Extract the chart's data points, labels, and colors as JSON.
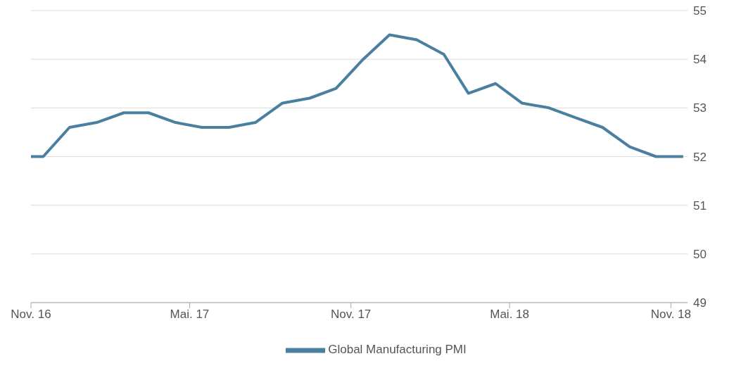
{
  "chart_data": {
    "type": "line",
    "x": [
      "2016-11-01",
      "2016-11-15",
      "2016-12-15",
      "2017-01-15",
      "2017-02-15",
      "2017-03-15",
      "2017-04-15",
      "2017-05-15",
      "2017-06-15",
      "2017-07-15",
      "2017-08-15",
      "2017-09-15",
      "2017-10-15",
      "2017-11-15",
      "2017-12-15",
      "2018-01-15",
      "2018-02-15",
      "2018-03-15",
      "2018-04-15",
      "2018-05-15",
      "2018-06-15",
      "2018-07-15",
      "2018-08-15",
      "2018-09-15",
      "2018-10-15",
      "2018-11-15"
    ],
    "series": [
      {
        "name": "Global Manufacturing PMI",
        "color": "#4a7fa0",
        "values": [
          52.0,
          52.0,
          52.6,
          52.7,
          52.9,
          52.9,
          52.7,
          52.6,
          52.6,
          52.7,
          53.1,
          53.2,
          53.4,
          54.0,
          54.5,
          54.4,
          54.1,
          53.3,
          53.5,
          53.1,
          53.0,
          52.8,
          52.6,
          52.2,
          52.0,
          52.0
        ]
      }
    ],
    "xlim": [
      "2016-11-01",
      "2018-11-20"
    ],
    "xticks": [
      {
        "value": "2016-11-01",
        "label": "Nov. 16"
      },
      {
        "value": "2017-05-01",
        "label": "Mai. 17"
      },
      {
        "value": "2017-11-01",
        "label": "Nov. 17"
      },
      {
        "value": "2018-05-01",
        "label": "Mai. 18"
      },
      {
        "value": "2018-11-01",
        "label": "Nov. 18"
      }
    ],
    "ylim": [
      49,
      55
    ],
    "yticks": [
      49,
      50,
      51,
      52,
      53,
      54,
      55
    ],
    "grid": "y",
    "legend": "bottom",
    "marker": "none",
    "line_style": "solid"
  }
}
